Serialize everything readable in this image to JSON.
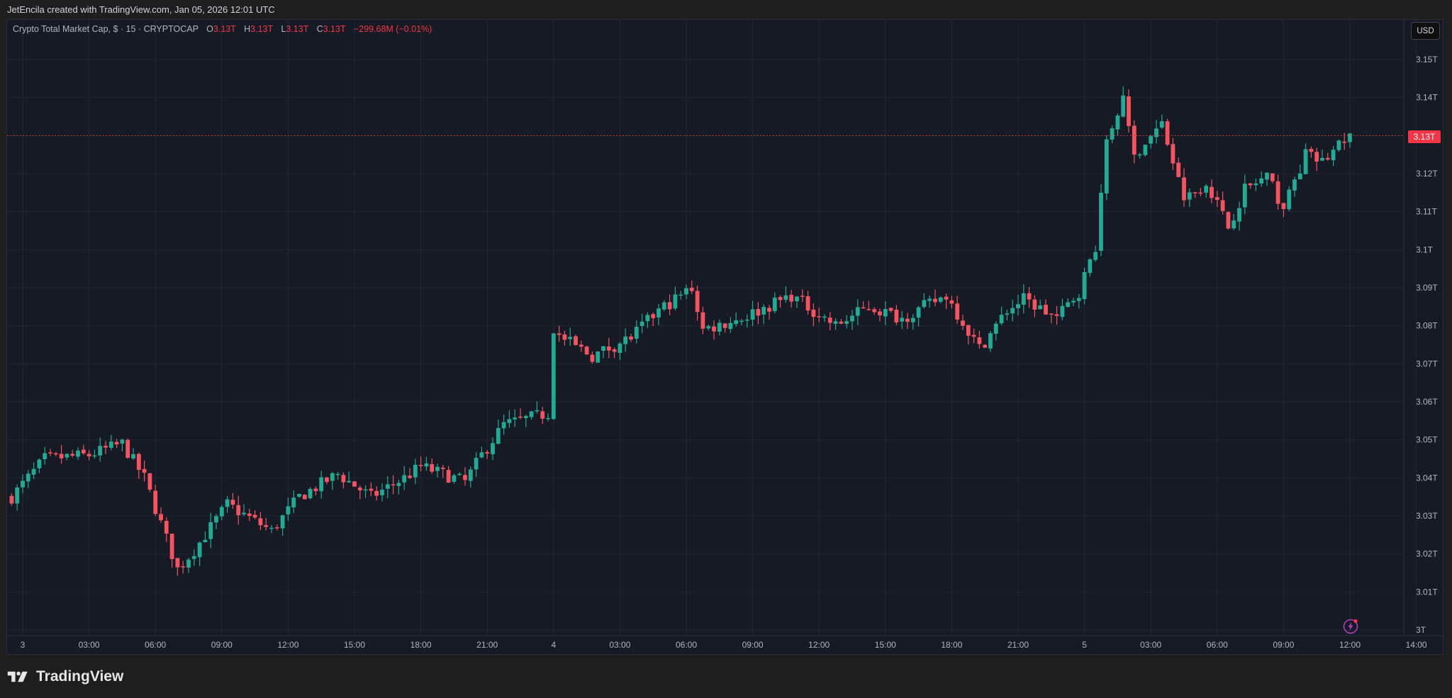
{
  "attribution": "JetEncila created with TradingView.com, Jan 05, 2026 12:01 UTC",
  "legend": {
    "symbol": "Crypto Total Market Cap, $ · 15 · CRYPTOCAP",
    "o_label": "O",
    "o_value": "3.13T",
    "h_label": "H",
    "h_value": "3.13T",
    "l_label": "L",
    "l_value": "3.13T",
    "c_label": "C",
    "c_value": "3.13T",
    "change": "−299.68M (−0.01%)"
  },
  "currency_button": "USD",
  "last_price_label": "3.13T",
  "footer": {
    "brand": "TradingView"
  },
  "colors": {
    "up": "#22ab94",
    "down": "#f7525f",
    "background": "#161a25",
    "grid": "#232734",
    "last_price": "#f23645",
    "alert_icon": "#b03cbd"
  },
  "chart_data": {
    "type": "candlestick",
    "title": "Crypto Total Market Cap, $ · 15 · CRYPTOCAP",
    "interval": "15",
    "ylabel": "USD",
    "ylim": [
      3.0,
      3.15
    ],
    "y_ticks": [
      "3.15T",
      "3.14T",
      "3.13T",
      "3.12T",
      "3.11T",
      "3.1T",
      "3.09T",
      "3.08T",
      "3.07T",
      "3.06T",
      "3.05T",
      "3.04T",
      "3.03T",
      "3.02T",
      "3.01T",
      "3T"
    ],
    "x_ticks": [
      "3",
      "03:00",
      "06:00",
      "09:00",
      "12:00",
      "15:00",
      "18:00",
      "21:00",
      "4",
      "03:00",
      "06:00",
      "09:00",
      "12:00",
      "15:00",
      "18:00",
      "21:00",
      "5",
      "03:00",
      "06:00",
      "09:00",
      "12:00",
      "14:00"
    ],
    "grid": true,
    "last_price": 3.13,
    "approx_close_path": [
      {
        "t": "Jan 2 23:30",
        "close": 3.035
      },
      {
        "t": "Jan 3 01:00",
        "close": 3.045
      },
      {
        "t": "Jan 3 03:00",
        "close": 3.046
      },
      {
        "t": "Jan 3 04:30",
        "close": 3.049
      },
      {
        "t": "Jan 3 05:30",
        "close": 3.04
      },
      {
        "t": "Jan 3 07:00",
        "close": 3.016
      },
      {
        "t": "Jan 3 07:45",
        "close": 3.021
      },
      {
        "t": "Jan 3 09:15",
        "close": 3.033
      },
      {
        "t": "Jan 3 11:15",
        "close": 3.026
      },
      {
        "t": "Jan 3 12:30",
        "close": 3.035
      },
      {
        "t": "Jan 3 14:15",
        "close": 3.041
      },
      {
        "t": "Jan 3 15:45",
        "close": 3.035
      },
      {
        "t": "Jan 3 17:15",
        "close": 3.04
      },
      {
        "t": "Jan 3 18:00",
        "close": 3.043
      },
      {
        "t": "Jan 3 20:00",
        "close": 3.039
      },
      {
        "t": "Jan 3 20:45",
        "close": 3.046
      },
      {
        "t": "Jan 3 21:45",
        "close": 3.054
      },
      {
        "t": "Jan 3 23:45",
        "close": 3.057
      },
      {
        "t": "Jan 4 00:00",
        "close": 3.078
      },
      {
        "t": "Jan 4 01:45",
        "close": 3.072
      },
      {
        "t": "Jan 4 03:30",
        "close": 3.077
      },
      {
        "t": "Jan 4 04:45",
        "close": 3.084
      },
      {
        "t": "Jan 4 06:15",
        "close": 3.09
      },
      {
        "t": "Jan 4 06:45",
        "close": 3.079
      },
      {
        "t": "Jan 4 08:30",
        "close": 3.082
      },
      {
        "t": "Jan 4 10:45",
        "close": 3.088
      },
      {
        "t": "Jan 4 12:45",
        "close": 3.08
      },
      {
        "t": "Jan 4 14:15",
        "close": 3.085
      },
      {
        "t": "Jan 4 15:45",
        "close": 3.082
      },
      {
        "t": "Jan 4 17:45",
        "close": 3.088
      },
      {
        "t": "Jan 4 19:15",
        "close": 3.074
      },
      {
        "t": "Jan 4 20:30",
        "close": 3.084
      },
      {
        "t": "Jan 4 21:15",
        "close": 3.087
      },
      {
        "t": "Jan 4 22:45",
        "close": 3.082
      },
      {
        "t": "Jan 4 23:45",
        "close": 3.089
      },
      {
        "t": "Jan 5 00:30",
        "close": 3.101
      },
      {
        "t": "Jan 5 01:00",
        "close": 3.129
      },
      {
        "t": "Jan 5 01:45",
        "close": 3.14
      },
      {
        "t": "Jan 5 02:15",
        "close": 3.125
      },
      {
        "t": "Jan 5 03:30",
        "close": 3.133
      },
      {
        "t": "Jan 5 04:30",
        "close": 3.113
      },
      {
        "t": "Jan 5 05:30",
        "close": 3.118
      },
      {
        "t": "Jan 5 06:30",
        "close": 3.106
      },
      {
        "t": "Jan 5 07:15",
        "close": 3.116
      },
      {
        "t": "Jan 5 08:15",
        "close": 3.119
      },
      {
        "t": "Jan 5 09:00",
        "close": 3.111
      },
      {
        "t": "Jan 5 10:00",
        "close": 3.125
      },
      {
        "t": "Jan 5 10:45",
        "close": 3.123
      },
      {
        "t": "Jan 5 11:45",
        "close": 3.129
      },
      {
        "t": "Jan 5 12:00",
        "close": 3.13
      }
    ]
  }
}
